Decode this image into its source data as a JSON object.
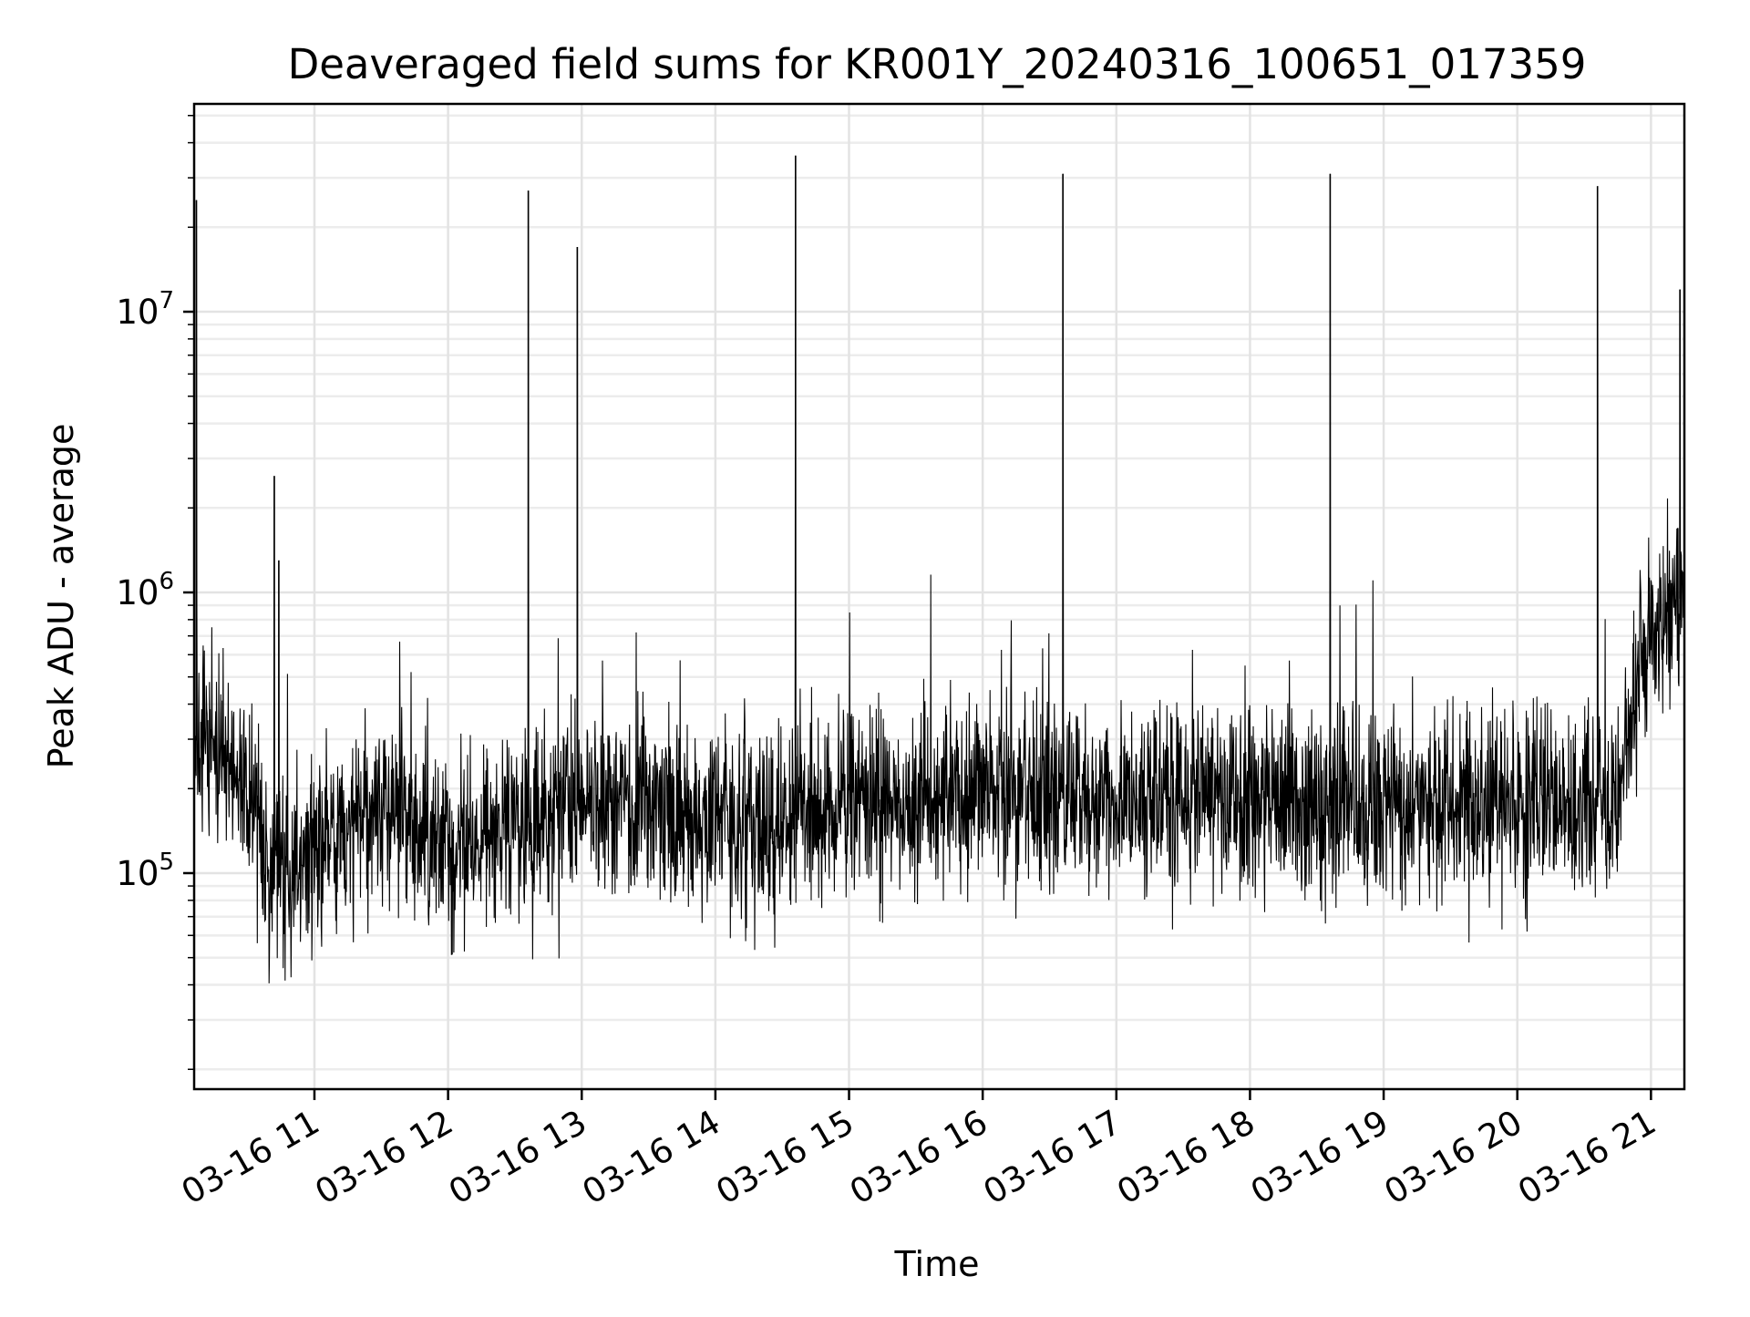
{
  "chart_data": {
    "type": "line",
    "title": "Deaveraged field sums for KR001Y_20240316_100651_017359",
    "xlabel": "Time",
    "ylabel": "Peak ADU - average",
    "x_scale": "time",
    "y_scale": "log",
    "xlim": [
      "2024-03-16 10:06",
      "2024-03-16 21:15"
    ],
    "ylim": [
      17000,
      55000000
    ],
    "grid": true,
    "x_ticks": [
      {
        "label": "03-16 11",
        "value": "2024-03-16 11:00"
      },
      {
        "label": "03-16 12",
        "value": "2024-03-16 12:00"
      },
      {
        "label": "03-16 13",
        "value": "2024-03-16 13:00"
      },
      {
        "label": "03-16 14",
        "value": "2024-03-16 14:00"
      },
      {
        "label": "03-16 15",
        "value": "2024-03-16 15:00"
      },
      {
        "label": "03-16 16",
        "value": "2024-03-16 16:00"
      },
      {
        "label": "03-16 17",
        "value": "2024-03-16 17:00"
      },
      {
        "label": "03-16 18",
        "value": "2024-03-16 18:00"
      },
      {
        "label": "03-16 19",
        "value": "2024-03-16 19:00"
      },
      {
        "label": "03-16 20",
        "value": "2024-03-16 20:00"
      },
      {
        "label": "03-16 21",
        "value": "2024-03-16 21:00"
      }
    ],
    "y_ticks": [
      {
        "base": "10",
        "exp": "5",
        "value": 100000
      },
      {
        "base": "10",
        "exp": "6",
        "value": 1000000
      },
      {
        "base": "10",
        "exp": "7",
        "value": 10000000
      }
    ],
    "series": [
      {
        "color": "#000000",
        "baseline": [
          {
            "x": "2024-03-16 10:06",
            "y": 300000
          },
          {
            "x": "2024-03-16 10:25",
            "y": 250000
          },
          {
            "x": "2024-03-16 10:40",
            "y": 110000
          },
          {
            "x": "2024-03-16 11:00",
            "y": 120000
          },
          {
            "x": "2024-03-16 11:30",
            "y": 170000
          },
          {
            "x": "2024-03-16 12:00",
            "y": 120000
          },
          {
            "x": "2024-03-16 12:30",
            "y": 150000
          },
          {
            "x": "2024-03-16 13:00",
            "y": 190000
          },
          {
            "x": "2024-03-16 14:00",
            "y": 150000
          },
          {
            "x": "2024-03-16 15:00",
            "y": 170000
          },
          {
            "x": "2024-03-16 16:00",
            "y": 190000
          },
          {
            "x": "2024-03-16 17:00",
            "y": 180000
          },
          {
            "x": "2024-03-16 18:00",
            "y": 180000
          },
          {
            "x": "2024-03-16 19:00",
            "y": 170000
          },
          {
            "x": "2024-03-16 20:00",
            "y": 180000
          },
          {
            "x": "2024-03-16 20:45",
            "y": 170000
          },
          {
            "x": "2024-03-16 20:55",
            "y": 600000
          },
          {
            "x": "2024-03-16 21:15",
            "y": 1000000
          }
        ],
        "spikes": [
          {
            "x": "2024-03-16 10:07",
            "y": 25000000
          },
          {
            "x": "2024-03-16 10:42",
            "y": 2600000
          },
          {
            "x": "2024-03-16 10:44",
            "y": 1300000
          },
          {
            "x": "2024-03-16 12:36",
            "y": 27000000
          },
          {
            "x": "2024-03-16 12:58",
            "y": 17000000
          },
          {
            "x": "2024-03-16 14:36",
            "y": 36000000
          },
          {
            "x": "2024-03-16 16:36",
            "y": 31000000
          },
          {
            "x": "2024-03-16 18:36",
            "y": 31000000
          },
          {
            "x": "2024-03-16 20:36",
            "y": 28000000
          },
          {
            "x": "2024-03-16 21:13",
            "y": 12000000
          }
        ]
      }
    ]
  }
}
